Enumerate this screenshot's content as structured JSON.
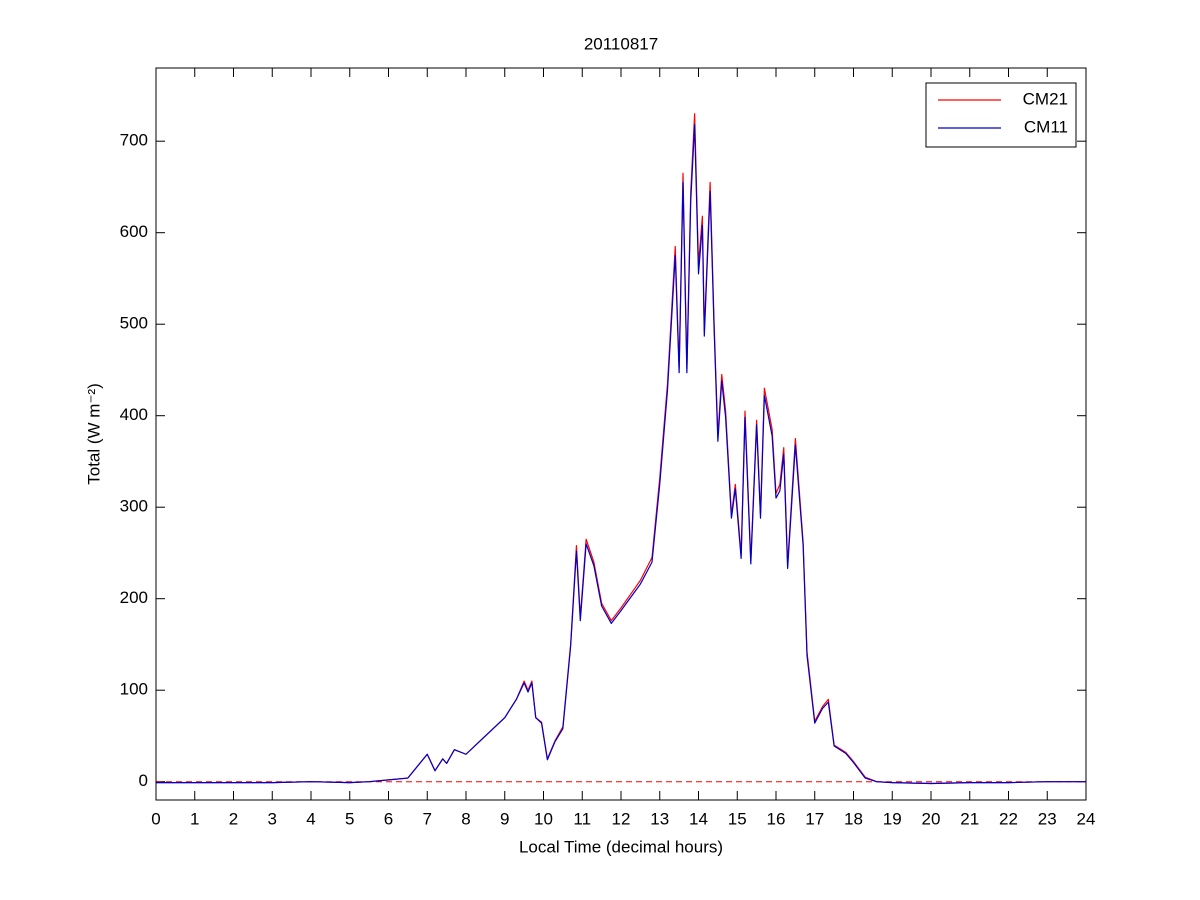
{
  "chart_data": {
    "type": "line",
    "title": "20110817",
    "xlabel": "Local Time (decimal hours)",
    "ylabel": "Total (W m⁻²)",
    "x": [
      0,
      1,
      2,
      3,
      4,
      5,
      5.5,
      6,
      6.5,
      7.0,
      7.2,
      7.4,
      7.5,
      7.7,
      8,
      8.5,
      9,
      9.3,
      9.5,
      9.6,
      9.7,
      9.8,
      9.95,
      10.1,
      10.3,
      10.5,
      10.7,
      10.85,
      10.95,
      11.1,
      11.3,
      11.5,
      11.75,
      12,
      12.5,
      12.8,
      13,
      13.2,
      13.4,
      13.5,
      13.6,
      13.7,
      13.8,
      13.9,
      14.0,
      14.1,
      14.15,
      14.3,
      14.4,
      14.5,
      14.6,
      14.7,
      14.85,
      14.95,
      15.1,
      15.2,
      15.35,
      15.5,
      15.6,
      15.7,
      15.9,
      16.0,
      16.1,
      16.2,
      16.3,
      16.5,
      16.7,
      16.8,
      17,
      17.2,
      17.35,
      17.5,
      17.8,
      18,
      18.3,
      18.6,
      19,
      20,
      21,
      22,
      23,
      24
    ],
    "series": [
      {
        "name": "CM21",
        "color": "#ff0000",
        "values": [
          -1,
          -1,
          -1,
          -1,
          0,
          -1,
          0,
          2,
          4,
          30,
          12,
          25,
          20,
          35,
          30,
          50,
          70,
          90,
          110,
          100,
          110,
          70,
          65,
          25,
          45,
          60,
          150,
          258,
          180,
          265,
          240,
          195,
          176,
          190,
          220,
          245,
          332,
          435,
          585,
          452,
          665,
          452,
          645,
          730,
          565,
          618,
          492,
          655,
          505,
          378,
          445,
          405,
          292,
          325,
          248,
          405,
          242,
          395,
          292,
          430,
          385,
          315,
          325,
          365,
          238,
          375,
          262,
          142,
          66,
          82,
          90,
          40,
          32,
          22,
          5,
          0,
          -1,
          -2,
          -1,
          -1,
          0,
          0
        ]
      },
      {
        "name": "CM11",
        "color": "#0000cc",
        "values": [
          -1,
          -1,
          -1,
          -1,
          0,
          -1,
          0,
          2,
          4,
          30,
          12,
          25,
          20,
          35,
          30,
          50,
          70,
          90,
          108,
          98,
          108,
          70,
          64,
          24,
          44,
          58,
          148,
          252,
          176,
          260,
          236,
          192,
          173,
          187,
          216,
          240,
          325,
          428,
          575,
          447,
          655,
          447,
          635,
          718,
          555,
          608,
          487,
          645,
          498,
          372,
          438,
          398,
          288,
          320,
          244,
          398,
          238,
          390,
          288,
          422,
          378,
          310,
          318,
          358,
          233,
          368,
          258,
          138,
          64,
          80,
          87,
          39,
          31,
          21,
          4,
          0,
          -1,
          -2,
          -1,
          -1,
          0,
          0
        ]
      }
    ],
    "hline": {
      "value": 0,
      "color": "#ff0000"
    },
    "xlim": [
      0,
      24
    ],
    "xticks": [
      0,
      1,
      2,
      3,
      4,
      5,
      6,
      7,
      8,
      9,
      10,
      11,
      12,
      13,
      14,
      15,
      16,
      17,
      18,
      19,
      20,
      21,
      22,
      23,
      24
    ],
    "ylim": [
      -20,
      780
    ],
    "yticks": [
      0,
      100,
      200,
      300,
      400,
      500,
      600,
      700
    ],
    "legend": "upper right",
    "grid": false
  }
}
